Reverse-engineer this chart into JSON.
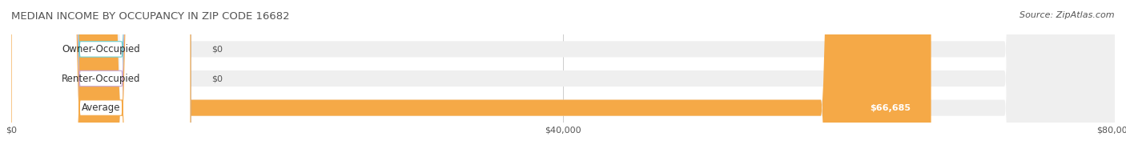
{
  "title": "MEDIAN INCOME BY OCCUPANCY IN ZIP CODE 16682",
  "source": "Source: ZipAtlas.com",
  "categories": [
    "Owner-Occupied",
    "Renter-Occupied",
    "Average"
  ],
  "values": [
    0,
    0,
    66685
  ],
  "bar_colors": [
    "#6ecfcf",
    "#c9a8d4",
    "#f5a947"
  ],
  "bar_bg_color": "#efefef",
  "label_bg_color": "#ffffff",
  "xlim": [
    0,
    80000
  ],
  "xticks": [
    0,
    40000,
    80000
  ],
  "xtick_labels": [
    "$0",
    "$40,000",
    "$80,000"
  ],
  "value_labels": [
    "$0",
    "$0",
    "$66,685"
  ],
  "bar_height": 0.55,
  "figsize": [
    14.06,
    1.96
  ],
  "title_fontsize": 9.5,
  "source_fontsize": 8,
  "label_fontsize": 8.5,
  "tick_fontsize": 8,
  "value_fontsize": 8
}
